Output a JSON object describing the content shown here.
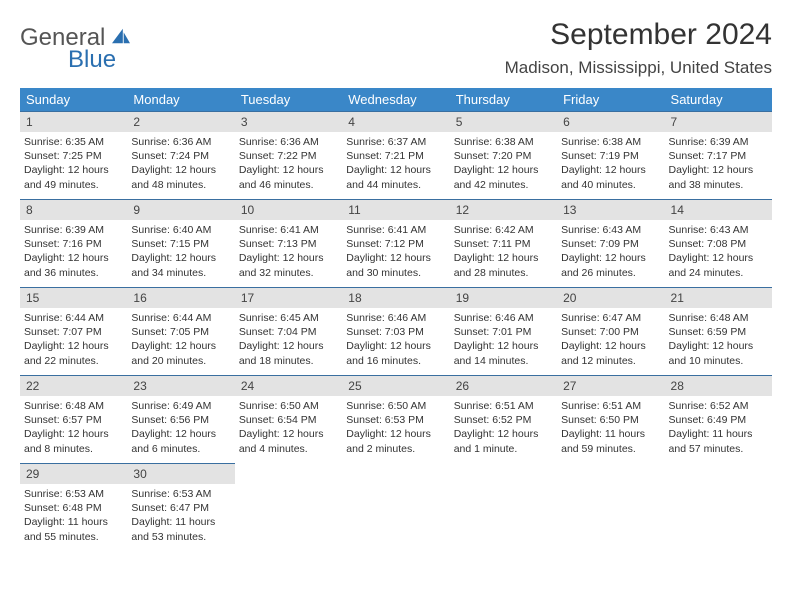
{
  "logo": {
    "text1": "General",
    "text2": "Blue",
    "color_gray": "#555555",
    "color_blue": "#2a6fb0"
  },
  "title": "September 2024",
  "location": "Madison, Mississippi, United States",
  "colors": {
    "header_bg": "#3a87c8",
    "header_fg": "#ffffff",
    "daynum_bg": "#e3e3e3",
    "rule": "#3a6fa0",
    "text": "#333333"
  },
  "fonts": {
    "title_size": 30,
    "location_size": 17,
    "th_size": 13,
    "daynum_size": 12,
    "body_size": 10.5
  },
  "dayNames": [
    "Sunday",
    "Monday",
    "Tuesday",
    "Wednesday",
    "Thursday",
    "Friday",
    "Saturday"
  ],
  "weeks": [
    [
      {
        "n": 1,
        "sunrise": "6:35 AM",
        "sunset": "7:25 PM",
        "daylight": "12 hours and 49 minutes."
      },
      {
        "n": 2,
        "sunrise": "6:36 AM",
        "sunset": "7:24 PM",
        "daylight": "12 hours and 48 minutes."
      },
      {
        "n": 3,
        "sunrise": "6:36 AM",
        "sunset": "7:22 PM",
        "daylight": "12 hours and 46 minutes."
      },
      {
        "n": 4,
        "sunrise": "6:37 AM",
        "sunset": "7:21 PM",
        "daylight": "12 hours and 44 minutes."
      },
      {
        "n": 5,
        "sunrise": "6:38 AM",
        "sunset": "7:20 PM",
        "daylight": "12 hours and 42 minutes."
      },
      {
        "n": 6,
        "sunrise": "6:38 AM",
        "sunset": "7:19 PM",
        "daylight": "12 hours and 40 minutes."
      },
      {
        "n": 7,
        "sunrise": "6:39 AM",
        "sunset": "7:17 PM",
        "daylight": "12 hours and 38 minutes."
      }
    ],
    [
      {
        "n": 8,
        "sunrise": "6:39 AM",
        "sunset": "7:16 PM",
        "daylight": "12 hours and 36 minutes."
      },
      {
        "n": 9,
        "sunrise": "6:40 AM",
        "sunset": "7:15 PM",
        "daylight": "12 hours and 34 minutes."
      },
      {
        "n": 10,
        "sunrise": "6:41 AM",
        "sunset": "7:13 PM",
        "daylight": "12 hours and 32 minutes."
      },
      {
        "n": 11,
        "sunrise": "6:41 AM",
        "sunset": "7:12 PM",
        "daylight": "12 hours and 30 minutes."
      },
      {
        "n": 12,
        "sunrise": "6:42 AM",
        "sunset": "7:11 PM",
        "daylight": "12 hours and 28 minutes."
      },
      {
        "n": 13,
        "sunrise": "6:43 AM",
        "sunset": "7:09 PM",
        "daylight": "12 hours and 26 minutes."
      },
      {
        "n": 14,
        "sunrise": "6:43 AM",
        "sunset": "7:08 PM",
        "daylight": "12 hours and 24 minutes."
      }
    ],
    [
      {
        "n": 15,
        "sunrise": "6:44 AM",
        "sunset": "7:07 PM",
        "daylight": "12 hours and 22 minutes."
      },
      {
        "n": 16,
        "sunrise": "6:44 AM",
        "sunset": "7:05 PM",
        "daylight": "12 hours and 20 minutes."
      },
      {
        "n": 17,
        "sunrise": "6:45 AM",
        "sunset": "7:04 PM",
        "daylight": "12 hours and 18 minutes."
      },
      {
        "n": 18,
        "sunrise": "6:46 AM",
        "sunset": "7:03 PM",
        "daylight": "12 hours and 16 minutes."
      },
      {
        "n": 19,
        "sunrise": "6:46 AM",
        "sunset": "7:01 PM",
        "daylight": "12 hours and 14 minutes."
      },
      {
        "n": 20,
        "sunrise": "6:47 AM",
        "sunset": "7:00 PM",
        "daylight": "12 hours and 12 minutes."
      },
      {
        "n": 21,
        "sunrise": "6:48 AM",
        "sunset": "6:59 PM",
        "daylight": "12 hours and 10 minutes."
      }
    ],
    [
      {
        "n": 22,
        "sunrise": "6:48 AM",
        "sunset": "6:57 PM",
        "daylight": "12 hours and 8 minutes."
      },
      {
        "n": 23,
        "sunrise": "6:49 AM",
        "sunset": "6:56 PM",
        "daylight": "12 hours and 6 minutes."
      },
      {
        "n": 24,
        "sunrise": "6:50 AM",
        "sunset": "6:54 PM",
        "daylight": "12 hours and 4 minutes."
      },
      {
        "n": 25,
        "sunrise": "6:50 AM",
        "sunset": "6:53 PM",
        "daylight": "12 hours and 2 minutes."
      },
      {
        "n": 26,
        "sunrise": "6:51 AM",
        "sunset": "6:52 PM",
        "daylight": "12 hours and 1 minute."
      },
      {
        "n": 27,
        "sunrise": "6:51 AM",
        "sunset": "6:50 PM",
        "daylight": "11 hours and 59 minutes."
      },
      {
        "n": 28,
        "sunrise": "6:52 AM",
        "sunset": "6:49 PM",
        "daylight": "11 hours and 57 minutes."
      }
    ],
    [
      {
        "n": 29,
        "sunrise": "6:53 AM",
        "sunset": "6:48 PM",
        "daylight": "11 hours and 55 minutes."
      },
      {
        "n": 30,
        "sunrise": "6:53 AM",
        "sunset": "6:47 PM",
        "daylight": "11 hours and 53 minutes."
      },
      null,
      null,
      null,
      null,
      null
    ]
  ],
  "labels": {
    "sunrise": "Sunrise:",
    "sunset": "Sunset:",
    "daylight": "Daylight:"
  }
}
